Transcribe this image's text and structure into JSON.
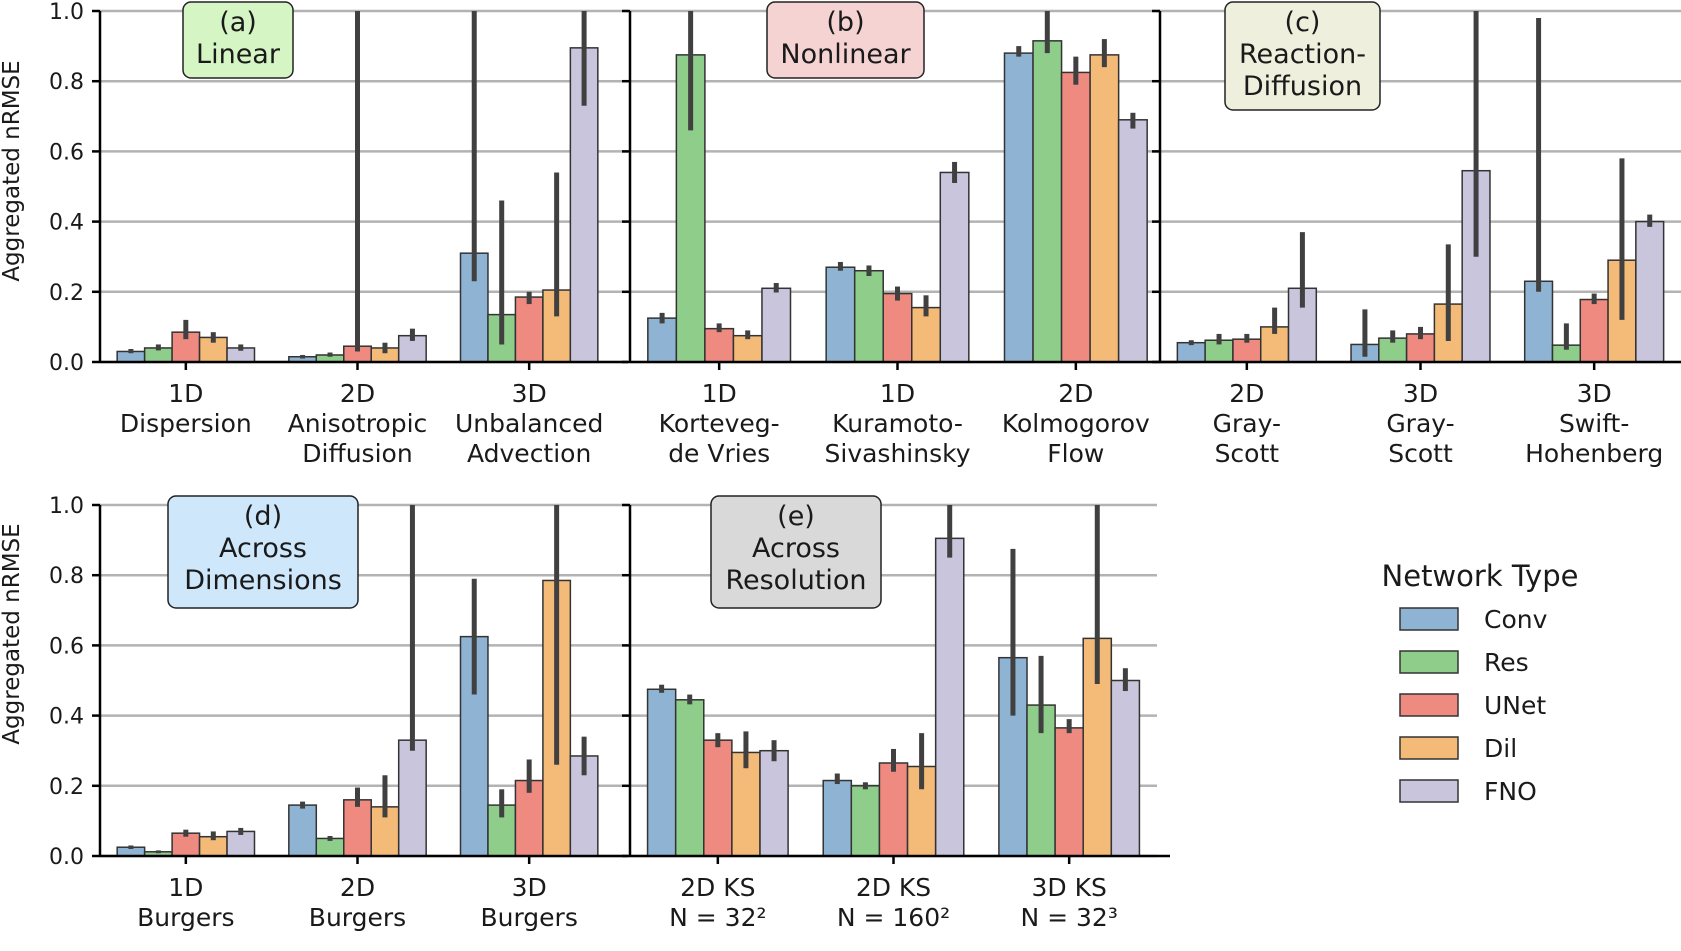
{
  "colors": {
    "Conv": "#8fb4d3",
    "Res": "#8fcd8b",
    "UNet": "#ef8a80",
    "Dil": "#f4ba77",
    "FNO": "#c9c5dd",
    "grid": "#b3b3b3",
    "errorbar": "#404040",
    "badge_a": "#d6f5c4",
    "badge_b": "#f5d3d3",
    "badge_c": "#eeefdc",
    "badge_d": "#cfe7fb",
    "badge_e": "#d9d9d9"
  },
  "legend": {
    "title": "Network Type",
    "entries": [
      "Conv",
      "Res",
      "UNet",
      "Dil",
      "FNO"
    ]
  },
  "ylabel": "Aggregated nRMSE",
  "chart_data": [
    {
      "type": "bar",
      "id": "a",
      "badge": [
        "(a)",
        "Linear"
      ],
      "badge_color": "badge_a",
      "ylabel": "Aggregated nRMSE",
      "ylim": [
        0,
        1.0
      ],
      "yticks": [
        "0.0",
        "0.2",
        "0.4",
        "0.6",
        "0.8",
        "1.0"
      ],
      "grid": true,
      "categories": [
        [
          "1D",
          "Dispersion"
        ],
        [
          "2D",
          "Anisotropic",
          "Diffusion"
        ],
        [
          "3D",
          "Unbalanced",
          "Advection"
        ]
      ],
      "series": [
        {
          "name": "Conv",
          "values": [
            0.03,
            0.015,
            0.31
          ],
          "err": [
            [
              0.025,
              0.037
            ],
            [
              0.01,
              0.02
            ],
            [
              0.23,
              1.0
            ]
          ]
        },
        {
          "name": "Res",
          "values": [
            0.04,
            0.02,
            0.135
          ],
          "err": [
            [
              0.033,
              0.05
            ],
            [
              0.015,
              0.027
            ],
            [
              0.05,
              0.46
            ]
          ]
        },
        {
          "name": "UNet",
          "values": [
            0.085,
            0.045,
            0.185
          ],
          "err": [
            [
              0.065,
              0.12
            ],
            [
              0.03,
              1.0
            ],
            [
              0.165,
              0.2
            ]
          ]
        },
        {
          "name": "Dil",
          "values": [
            0.07,
            0.04,
            0.205
          ],
          "err": [
            [
              0.055,
              0.085
            ],
            [
              0.025,
              0.055
            ],
            [
              0.13,
              0.54
            ]
          ]
        },
        {
          "name": "FNO",
          "values": [
            0.04,
            0.075,
            0.895
          ],
          "err": [
            [
              0.032,
              0.05
            ],
            [
              0.06,
              0.095
            ],
            [
              0.73,
              1.0
            ]
          ]
        }
      ]
    },
    {
      "type": "bar",
      "id": "b",
      "badge": [
        "(b)",
        "Nonlinear"
      ],
      "badge_color": "badge_b",
      "ylim": [
        0,
        1.0
      ],
      "grid": true,
      "categories": [
        [
          "1D",
          "Korteveg-",
          "de Vries"
        ],
        [
          "1D",
          "Kuramoto-",
          "Sivashinsky"
        ],
        [
          "2D",
          "Kolmogorov",
          "Flow"
        ]
      ],
      "series": [
        {
          "name": "Conv",
          "values": [
            0.125,
            0.27,
            0.88
          ],
          "err": [
            [
              0.11,
              0.14
            ],
            [
              0.26,
              0.285
            ],
            [
              0.87,
              0.9
            ]
          ]
        },
        {
          "name": "Res",
          "values": [
            0.875,
            0.26,
            0.915
          ],
          "err": [
            [
              0.66,
              1.0
            ],
            [
              0.245,
              0.275
            ],
            [
              0.88,
              1.0
            ]
          ]
        },
        {
          "name": "UNet",
          "values": [
            0.095,
            0.195,
            0.825
          ],
          "err": [
            [
              0.085,
              0.11
            ],
            [
              0.175,
              0.215
            ],
            [
              0.79,
              0.87
            ]
          ]
        },
        {
          "name": "Dil",
          "values": [
            0.075,
            0.155,
            0.875
          ],
          "err": [
            [
              0.065,
              0.09
            ],
            [
              0.13,
              0.19
            ],
            [
              0.84,
              0.92
            ]
          ]
        },
        {
          "name": "FNO",
          "values": [
            0.21,
            0.54,
            0.69
          ],
          "err": [
            [
              0.198,
              0.225
            ],
            [
              0.51,
              0.57
            ],
            [
              0.665,
              0.71
            ]
          ]
        }
      ]
    },
    {
      "type": "bar",
      "id": "c",
      "badge": [
        "(c)",
        "Reaction-",
        "Diffusion"
      ],
      "badge_color": "badge_c",
      "ylim": [
        0,
        1.0
      ],
      "grid": true,
      "categories": [
        [
          "2D",
          "Gray-",
          "Scott"
        ],
        [
          "3D",
          "Gray-",
          "Scott"
        ],
        [
          "3D",
          "Swift-",
          "Hohenberg"
        ]
      ],
      "series": [
        {
          "name": "Conv",
          "values": [
            0.055,
            0.05,
            0.23
          ],
          "err": [
            [
              0.048,
              0.062
            ],
            [
              0.015,
              0.15
            ],
            [
              0.2,
              0.98
            ]
          ]
        },
        {
          "name": "Res",
          "values": [
            0.062,
            0.068,
            0.048
          ],
          "err": [
            [
              0.05,
              0.08
            ],
            [
              0.055,
              0.09
            ],
            [
              0.035,
              0.11
            ]
          ]
        },
        {
          "name": "UNet",
          "values": [
            0.065,
            0.08,
            0.178
          ],
          "err": [
            [
              0.055,
              0.08
            ],
            [
              0.065,
              0.1
            ],
            [
              0.165,
              0.195
            ]
          ]
        },
        {
          "name": "Dil",
          "values": [
            0.1,
            0.165,
            0.29
          ],
          "err": [
            [
              0.08,
              0.155
            ],
            [
              0.06,
              0.335
            ],
            [
              0.12,
              0.58
            ]
          ]
        },
        {
          "name": "FNO",
          "values": [
            0.21,
            0.545,
            0.4
          ],
          "err": [
            [
              0.155,
              0.37
            ],
            [
              0.3,
              1.0
            ],
            [
              0.385,
              0.42
            ]
          ]
        }
      ]
    },
    {
      "type": "bar",
      "id": "d",
      "badge": [
        "(d)",
        "Across",
        "Dimensions"
      ],
      "badge_color": "badge_d",
      "ylabel": "Aggregated nRMSE",
      "ylim": [
        0,
        1.0
      ],
      "yticks": [
        "0.0",
        "0.2",
        "0.4",
        "0.6",
        "0.8",
        "1.0"
      ],
      "grid": true,
      "categories": [
        [
          "1D",
          "Burgers"
        ],
        [
          "2D",
          "Burgers"
        ],
        [
          "3D",
          "Burgers"
        ]
      ],
      "series": [
        {
          "name": "Conv",
          "values": [
            0.025,
            0.145,
            0.625
          ],
          "err": [
            [
              0.02,
              0.03
            ],
            [
              0.135,
              0.155
            ],
            [
              0.46,
              0.79
            ]
          ]
        },
        {
          "name": "Res",
          "values": [
            0.012,
            0.05,
            0.145
          ],
          "err": [
            [
              0.008,
              0.016
            ],
            [
              0.043,
              0.057
            ],
            [
              0.11,
              0.19
            ]
          ]
        },
        {
          "name": "UNet",
          "values": [
            0.065,
            0.16,
            0.215
          ],
          "err": [
            [
              0.055,
              0.075
            ],
            [
              0.14,
              0.195
            ],
            [
              0.18,
              0.275
            ]
          ]
        },
        {
          "name": "Dil",
          "values": [
            0.055,
            0.14,
            0.785
          ],
          "err": [
            [
              0.045,
              0.07
            ],
            [
              0.11,
              0.23
            ],
            [
              0.26,
              1.0
            ]
          ]
        },
        {
          "name": "FNO",
          "values": [
            0.07,
            0.33,
            0.285
          ],
          "err": [
            [
              0.06,
              0.08
            ],
            [
              0.3,
              1.0
            ],
            [
              0.23,
              0.34
            ]
          ]
        }
      ]
    },
    {
      "type": "bar",
      "id": "e",
      "badge": [
        "(e)",
        "Across",
        "Resolution"
      ],
      "badge_color": "badge_e",
      "ylim": [
        0,
        1.0
      ],
      "grid": true,
      "categories": [
        [
          "2D KS",
          "N = 32²"
        ],
        [
          "2D KS",
          "N = 160²"
        ],
        [
          "3D KS",
          "N = 32³"
        ]
      ],
      "series": [
        {
          "name": "Conv",
          "values": [
            0.475,
            0.215,
            0.565
          ],
          "err": [
            [
              0.465,
              0.488
            ],
            [
              0.205,
              0.235
            ],
            [
              0.4,
              0.875
            ]
          ]
        },
        {
          "name": "Res",
          "values": [
            0.445,
            0.2,
            0.43
          ],
          "err": [
            [
              0.432,
              0.46
            ],
            [
              0.19,
              0.21
            ],
            [
              0.35,
              0.57
            ]
          ]
        },
        {
          "name": "UNet",
          "values": [
            0.33,
            0.265,
            0.365
          ],
          "err": [
            [
              0.31,
              0.35
            ],
            [
              0.24,
              0.305
            ],
            [
              0.35,
              0.39
            ]
          ]
        },
        {
          "name": "Dil",
          "values": [
            0.295,
            0.255,
            0.62
          ],
          "err": [
            [
              0.25,
              0.355
            ],
            [
              0.19,
              0.35
            ],
            [
              0.49,
              1.0
            ]
          ]
        },
        {
          "name": "FNO",
          "values": [
            0.3,
            0.905,
            0.5
          ],
          "err": [
            [
              0.27,
              0.33
            ],
            [
              0.85,
              1.0
            ],
            [
              0.47,
              0.535
            ]
          ]
        }
      ]
    }
  ]
}
